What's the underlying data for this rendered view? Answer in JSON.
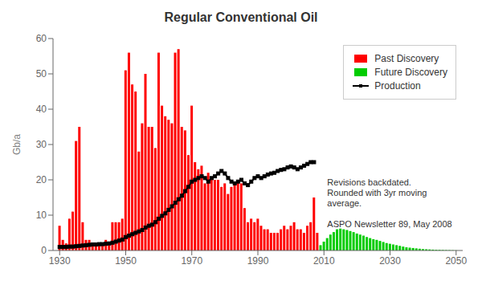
{
  "chart_data": {
    "type": "bar",
    "title": "Regular Conventional Oil",
    "ylabel": "Gb/a",
    "xlim": [
      1928,
      2052
    ],
    "ylim": [
      0,
      60
    ],
    "xticks": [
      1930,
      1950,
      1970,
      1990,
      2010,
      2030,
      2050
    ],
    "yticks": [
      0,
      10,
      20,
      30,
      40,
      50,
      60
    ],
    "grid": false,
    "legend": "upper right",
    "series": [
      {
        "name": "Past Discovery",
        "type": "bar",
        "color": "#ff0000",
        "x": [
          1930,
          1931,
          1932,
          1933,
          1934,
          1935,
          1936,
          1937,
          1938,
          1939,
          1940,
          1941,
          1942,
          1943,
          1944,
          1945,
          1946,
          1947,
          1948,
          1949,
          1950,
          1951,
          1952,
          1953,
          1954,
          1955,
          1956,
          1957,
          1958,
          1959,
          1960,
          1961,
          1962,
          1963,
          1964,
          1965,
          1966,
          1967,
          1968,
          1969,
          1970,
          1971,
          1972,
          1973,
          1974,
          1975,
          1976,
          1977,
          1978,
          1979,
          1980,
          1981,
          1982,
          1983,
          1984,
          1985,
          1986,
          1987,
          1988,
          1989,
          1990,
          1991,
          1992,
          1993,
          1994,
          1995,
          1996,
          1997,
          1998,
          1999,
          2000,
          2001,
          2002,
          2003,
          2004,
          2005,
          2006,
          2007,
          2008
        ],
        "values": [
          7,
          3,
          2,
          9,
          11,
          31,
          35,
          8,
          3,
          3,
          2,
          2,
          2,
          2,
          3,
          2,
          8,
          8,
          8,
          9,
          51,
          56,
          47,
          45,
          28,
          36,
          50,
          35,
          35,
          29,
          56,
          41,
          38,
          37,
          36,
          56,
          57,
          35,
          34,
          27,
          41,
          25,
          23,
          24,
          19,
          22,
          20,
          20,
          20,
          18,
          19,
          16,
          18,
          19,
          20,
          19,
          12,
          8,
          9,
          8,
          9,
          7,
          6,
          6,
          5,
          5,
          5,
          6,
          7,
          6,
          7,
          8,
          6,
          6,
          5,
          7,
          8,
          15,
          5
        ]
      },
      {
        "name": "Future Discovery",
        "type": "bar",
        "color": "#00cc00",
        "x": [
          2009,
          2010,
          2011,
          2012,
          2013,
          2014,
          2015,
          2016,
          2017,
          2018,
          2019,
          2020,
          2021,
          2022,
          2023,
          2024,
          2025,
          2026,
          2027,
          2028,
          2029,
          2030,
          2031,
          2032,
          2033,
          2034,
          2035,
          2036,
          2037,
          2038,
          2039,
          2040,
          2041,
          2042,
          2043,
          2044,
          2045,
          2046,
          2047,
          2048,
          2049,
          2050
        ],
        "values": [
          1.5,
          2.5,
          3.5,
          4.5,
          5.2,
          6.0,
          6.2,
          6.0,
          5.8,
          5.5,
          5.2,
          4.8,
          4.5,
          4.2,
          3.8,
          3.5,
          3.2,
          3.0,
          2.7,
          2.4,
          2.1,
          1.9,
          1.7,
          1.5,
          1.3,
          1.1,
          0.9,
          0.8,
          0.7,
          0.6,
          0.5,
          0.4,
          0.35,
          0.3,
          0.25,
          0.2,
          0.18,
          0.15,
          0.12,
          0.1,
          0.07,
          0.04
        ]
      },
      {
        "name": "Production",
        "type": "line",
        "color": "#000000",
        "marker": "square",
        "x": [
          1930,
          1931,
          1932,
          1933,
          1934,
          1935,
          1936,
          1937,
          1938,
          1939,
          1940,
          1941,
          1942,
          1943,
          1944,
          1945,
          1946,
          1947,
          1948,
          1949,
          1950,
          1951,
          1952,
          1953,
          1954,
          1955,
          1956,
          1957,
          1958,
          1959,
          1960,
          1961,
          1962,
          1963,
          1964,
          1965,
          1966,
          1967,
          1968,
          1969,
          1970,
          1971,
          1972,
          1973,
          1974,
          1975,
          1976,
          1977,
          1978,
          1979,
          1980,
          1981,
          1982,
          1983,
          1984,
          1985,
          1986,
          1987,
          1988,
          1989,
          1990,
          1991,
          1992,
          1993,
          1994,
          1995,
          1996,
          1997,
          1998,
          1999,
          2000,
          2001,
          2002,
          2003,
          2004,
          2005,
          2006,
          2007
        ],
        "values": [
          1.0,
          1.0,
          1.0,
          1.1,
          1.1,
          1.2,
          1.3,
          1.4,
          1.5,
          1.6,
          1.7,
          1.7,
          1.8,
          1.8,
          1.9,
          2.0,
          2.2,
          2.5,
          2.8,
          3.1,
          3.8,
          4.2,
          4.6,
          5.0,
          5.4,
          5.8,
          6.5,
          7.0,
          7.3,
          8.0,
          9.0,
          9.8,
          10.5,
          11.5,
          12.5,
          13.5,
          14.5,
          15.5,
          16.8,
          18.0,
          19.5,
          20.0,
          20.5,
          21.0,
          20.5,
          19.5,
          20.5,
          21.0,
          21.8,
          22.5,
          21.8,
          20.5,
          19.5,
          19.0,
          19.5,
          20.0,
          19.0,
          18.5,
          19.5,
          20.5,
          21.0,
          20.5,
          21.0,
          21.5,
          21.8,
          22.0,
          22.5,
          22.8,
          23.0,
          23.5,
          23.8,
          23.5,
          23.0,
          23.5,
          24.0,
          24.5,
          25.0,
          25.0
        ]
      }
    ],
    "annotations": [
      {
        "text": "Revisions backdated.\nRounded with 3yr moving\naverage.\n\nASPO Newsletter 89, May 2008",
        "x": 2011,
        "y": 21
      }
    ]
  }
}
